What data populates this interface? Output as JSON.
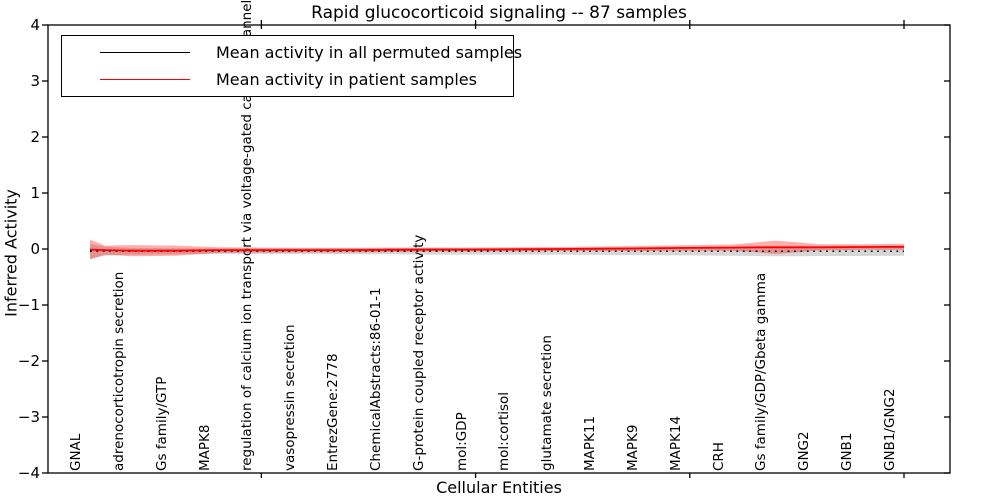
{
  "title": "Rapid glucocorticoid signaling -- 87 samples",
  "axes": {
    "xlabel": "Cellular Entities",
    "ylabel": "Inferred Activity",
    "ytick_labels": [
      "4",
      "3",
      "2",
      "1",
      "0",
      "−1",
      "−2",
      "−3",
      "−4"
    ]
  },
  "legend": {
    "items": [
      {
        "label": "Mean activity in all permuted samples",
        "color": "#000000"
      },
      {
        "label": "Mean activity in patient samples",
        "color": "#ff0000"
      }
    ]
  },
  "chart_data": {
    "type": "line",
    "title": "Rapid glucocorticoid signaling -- 87 samples",
    "xlabel": "Cellular Entities",
    "ylabel": "Inferred Activity",
    "ylim": [
      -4,
      4
    ],
    "yticks": [
      4,
      3,
      2,
      1,
      0,
      -1,
      -2,
      -3,
      -4
    ],
    "grid": false,
    "legend_position": "upper left",
    "categories": [
      "GNAL",
      "adrenocorticotropin secretion",
      "Gs family/GTP",
      "MAPK8",
      "regulation of calcium ion transport via voltage-gated calcium channel activity",
      "vasopressin secretion",
      "EntrezGene:2778",
      "ChemicalAbstracts:86-01-1",
      "G-protein coupled receptor activity",
      "mol:GDP",
      "mol:cortisol",
      "glutamate secretion",
      "MAPK11",
      "MAPK9",
      "MAPK14",
      "CRH",
      "Gs family/GDP/Gbeta gamma",
      "GNG2",
      "GNB1",
      "GNB1/GNG2"
    ],
    "series": [
      {
        "name": "Mean activity in all permuted samples",
        "color": "#000000",
        "linestyle": "dotted",
        "values": [
          -0.04,
          -0.04,
          -0.04,
          -0.04,
          -0.04,
          -0.04,
          -0.04,
          -0.04,
          -0.04,
          -0.04,
          -0.04,
          -0.04,
          -0.04,
          -0.04,
          -0.04,
          -0.04,
          -0.04,
          -0.04,
          -0.04,
          -0.04
        ],
        "band_halfwidths": [
          0.13,
          0.06,
          0.055,
          0.05,
          0.05,
          0.05,
          0.055,
          0.055,
          0.06,
          0.06,
          0.06,
          0.06,
          0.065,
          0.07,
          0.075,
          0.08,
          0.09,
          0.085,
          0.085,
          0.08
        ],
        "band_color": "rgba(120,120,120,0.30)"
      },
      {
        "name": "Mean activity in patient samples",
        "color": "#ff0000",
        "linestyle": "solid",
        "values": [
          -0.01,
          -0.03,
          -0.03,
          -0.02,
          -0.02,
          -0.02,
          -0.02,
          -0.015,
          -0.01,
          -0.01,
          -0.005,
          0,
          0.005,
          0.01,
          0.02,
          0.025,
          0.03,
          0.03,
          0.035,
          0.04
        ],
        "band_halfwidths": [
          0.18,
          0.1,
          0.09,
          0.05,
          0.045,
          0.04,
          0.04,
          0.04,
          0.035,
          0.035,
          0.035,
          0.035,
          0.04,
          0.045,
          0.05,
          0.055,
          0.12,
          0.055,
          0.05,
          0.055
        ],
        "band_color": "rgba(255,0,0,0.32)"
      }
    ],
    "render_profile": {
      "x_index": [
        0,
        0.35,
        1,
        2,
        3,
        4,
        5,
        6,
        7,
        8,
        9,
        10,
        11,
        12,
        13,
        14,
        15,
        15.6,
        16,
        16.5,
        17,
        18,
        19
      ],
      "patient_mean": [
        -0.01,
        -0.02,
        -0.03,
        -0.03,
        -0.02,
        -0.02,
        -0.02,
        -0.02,
        -0.015,
        -0.01,
        -0.01,
        -0.005,
        0,
        0.005,
        0.01,
        0.02,
        0.025,
        0.03,
        0.03,
        0.03,
        0.03,
        0.035,
        0.04
      ],
      "patient_hw": [
        0.18,
        0.08,
        0.1,
        0.09,
        0.05,
        0.045,
        0.04,
        0.04,
        0.04,
        0.035,
        0.035,
        0.035,
        0.035,
        0.04,
        0.045,
        0.05,
        0.055,
        0.09,
        0.12,
        0.09,
        0.055,
        0.05,
        0.055
      ],
      "permuted_mean": -0.04,
      "permuted_hw": [
        0.13,
        0.08,
        0.06,
        0.055,
        0.05,
        0.05,
        0.05,
        0.055,
        0.055,
        0.06,
        0.06,
        0.06,
        0.06,
        0.065,
        0.07,
        0.075,
        0.08,
        0.085,
        0.09,
        0.09,
        0.085,
        0.085,
        0.08
      ]
    },
    "x_major_tick_indices": [
      4,
      9,
      14,
      19
    ]
  }
}
